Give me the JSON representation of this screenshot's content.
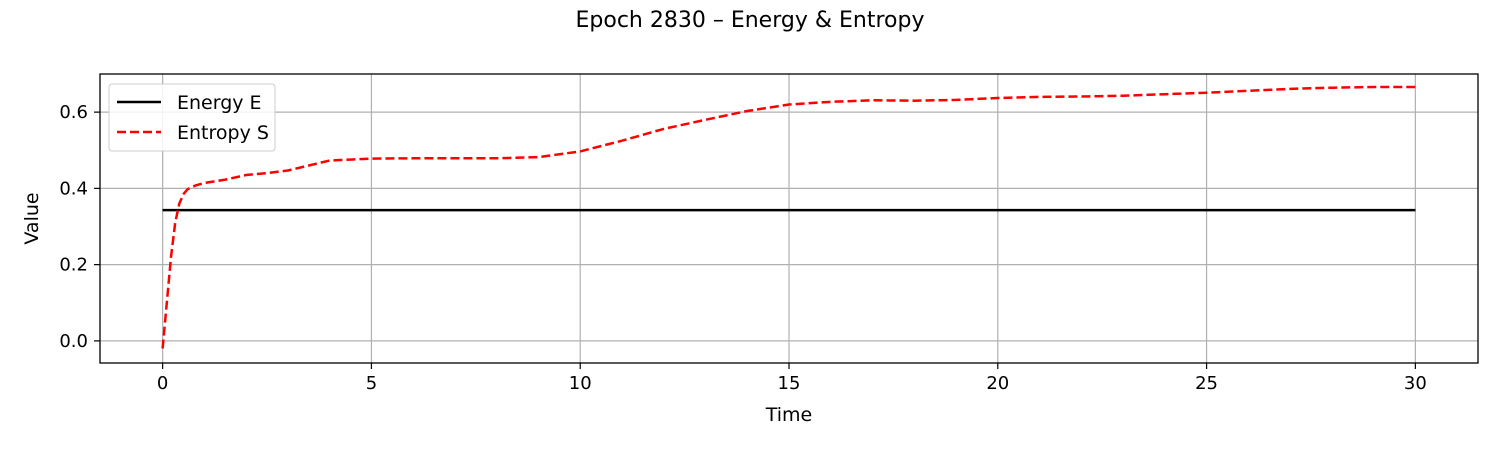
{
  "chart_data": {
    "type": "line",
    "title": "Epoch 2830 – Energy & Entropy",
    "xlabel": "Time",
    "ylabel": "Value",
    "xlim": [
      -1.5,
      31.5
    ],
    "ylim": [
      -0.058,
      0.7
    ],
    "xticks": [
      0,
      5,
      10,
      15,
      20,
      25,
      30
    ],
    "xtick_labels": [
      "0",
      "5",
      "10",
      "15",
      "20",
      "25",
      "30"
    ],
    "yticks": [
      0.0,
      0.2,
      0.4,
      0.6
    ],
    "ytick_labels": [
      "0.0",
      "0.2",
      "0.4",
      "0.6"
    ],
    "grid": true,
    "legend_position": "top-left",
    "series": [
      {
        "name": "Energy E",
        "color": "#000000",
        "style": "solid",
        "x": [
          0,
          30
        ],
        "y": [
          0.343,
          0.343
        ]
      },
      {
        "name": "Entropy S",
        "color": "#ff0000",
        "style": "dashed",
        "x": [
          0,
          0.1,
          0.2,
          0.3,
          0.4,
          0.5,
          0.6,
          0.8,
          1.0,
          1.5,
          2.0,
          2.5,
          3.0,
          3.5,
          4.0,
          5.0,
          6.0,
          7.0,
          8.0,
          9.0,
          10.0,
          11.0,
          12.0,
          13.0,
          14.0,
          15.0,
          16.0,
          17.0,
          18.0,
          19.0,
          20.0,
          21.0,
          22.0,
          23.0,
          24.0,
          25.0,
          26.0,
          27.0,
          28.0,
          29.0,
          30.0
        ],
        "y": [
          -0.02,
          0.1,
          0.22,
          0.31,
          0.36,
          0.385,
          0.398,
          0.408,
          0.414,
          0.423,
          0.435,
          0.44,
          0.447,
          0.46,
          0.473,
          0.478,
          0.479,
          0.479,
          0.479,
          0.482,
          0.497,
          0.525,
          0.556,
          0.58,
          0.603,
          0.62,
          0.627,
          0.631,
          0.63,
          0.632,
          0.637,
          0.64,
          0.641,
          0.643,
          0.647,
          0.651,
          0.656,
          0.661,
          0.664,
          0.666,
          0.666
        ]
      }
    ]
  }
}
